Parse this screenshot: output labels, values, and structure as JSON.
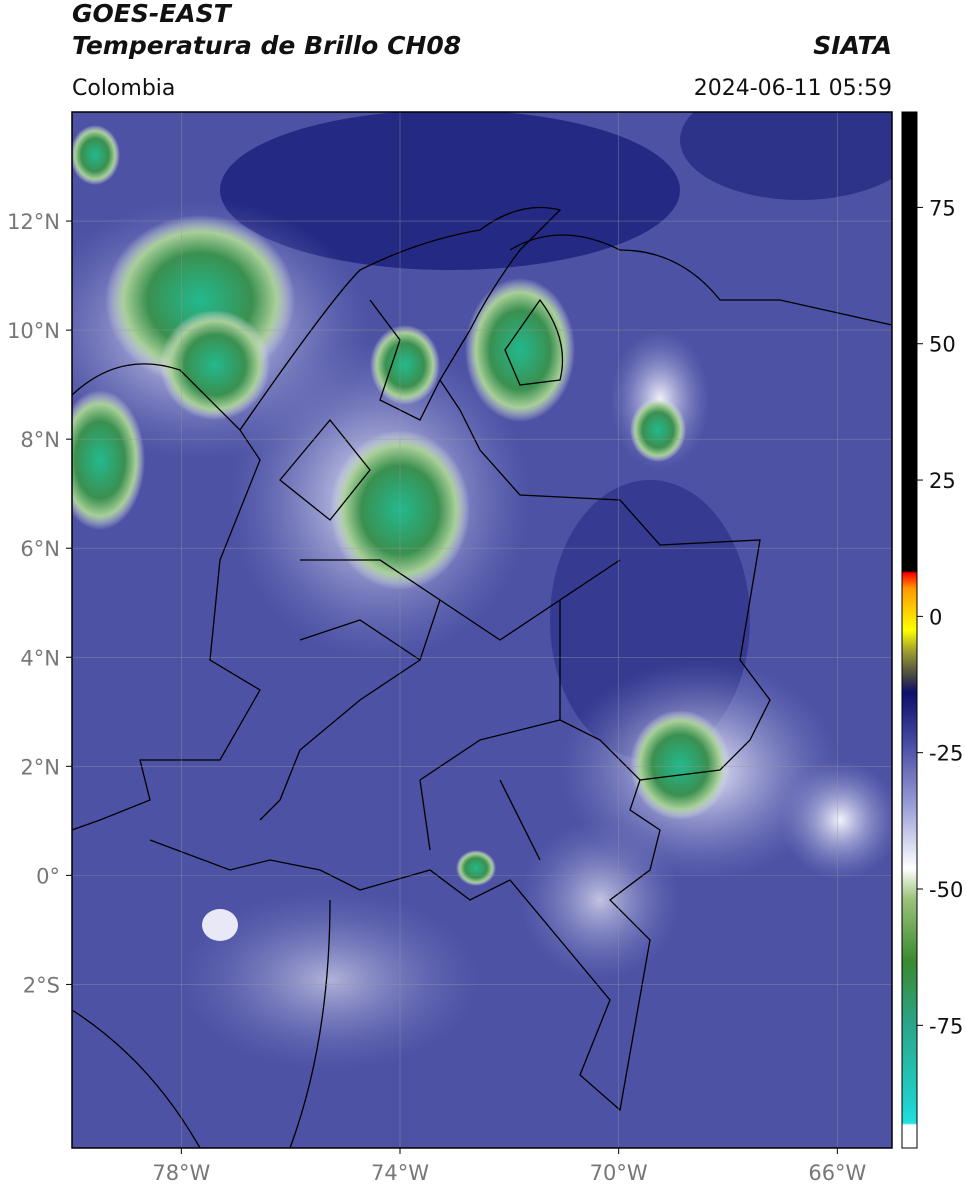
{
  "header": {
    "title": "GOES-EAST",
    "subtitle": "Temperatura de Brillo CH08",
    "source": "SIATA",
    "region": "Colombia",
    "timestamp": "2024-06-11 05:59"
  },
  "map": {
    "lonlim": [
      -80,
      -65
    ],
    "latlim": [
      -5,
      14
    ],
    "grid": true,
    "lonticks": [
      {
        "value": -78,
        "label": "78°W"
      },
      {
        "value": -74,
        "label": "74°W"
      },
      {
        "value": -70,
        "label": "70°W"
      },
      {
        "value": -66,
        "label": "66°W"
      }
    ],
    "latticks": [
      {
        "value": 12,
        "label": "12°N"
      },
      {
        "value": 10,
        "label": "10°N"
      },
      {
        "value": 8,
        "label": "8°N"
      },
      {
        "value": 6,
        "label": "6°N"
      },
      {
        "value": 4,
        "label": "4°N"
      },
      {
        "value": 2,
        "label": "2°N"
      },
      {
        "value": 0,
        "label": "0°"
      },
      {
        "value": -2,
        "label": "2°S"
      }
    ]
  },
  "colorbar": {
    "lim": [
      -97.5,
      92.5
    ],
    "ticks": [
      75,
      50,
      25,
      0,
      -25,
      -50,
      -75
    ]
  }
}
